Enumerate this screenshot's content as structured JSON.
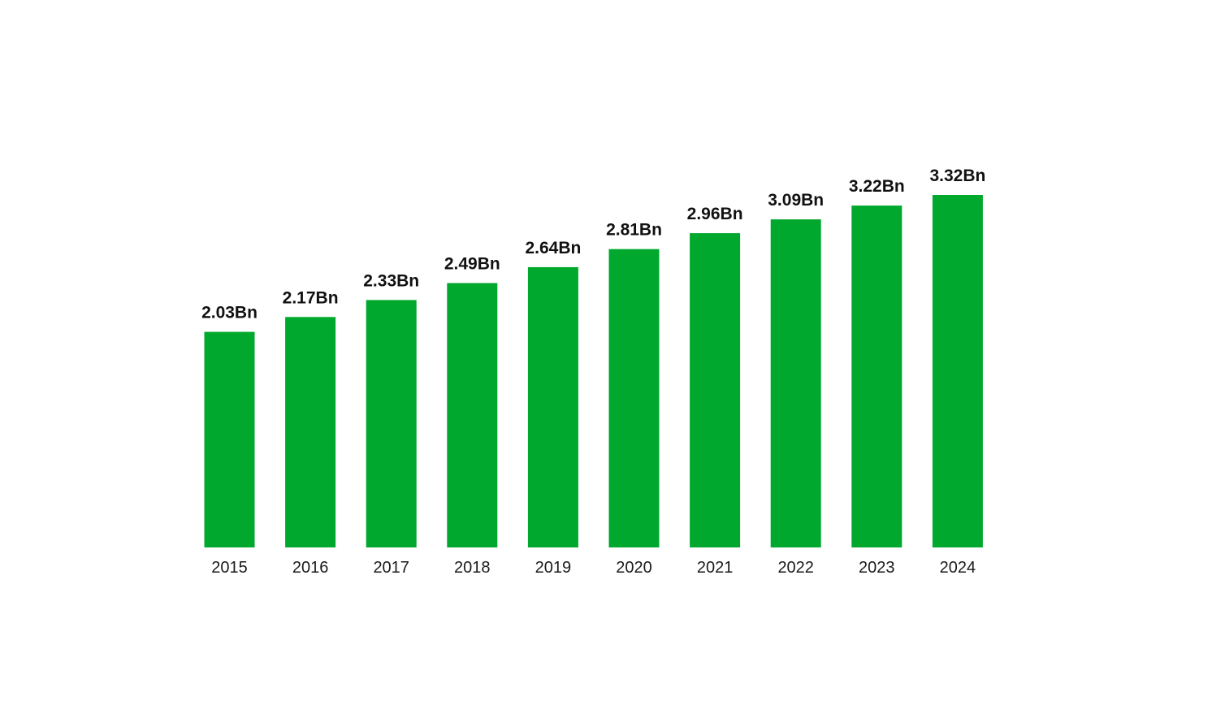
{
  "chart_data": {
    "type": "bar",
    "categories": [
      "2015",
      "2016",
      "2017",
      "2018",
      "2019",
      "2020",
      "2021",
      "2022",
      "2023",
      "2024"
    ],
    "values": [
      2.03,
      2.17,
      2.33,
      2.49,
      2.64,
      2.81,
      2.96,
      3.09,
      3.22,
      3.32
    ],
    "data_labels": [
      "2.03Bn",
      "2.17Bn",
      "2.33Bn",
      "2.49Bn",
      "2.64Bn",
      "2.81Bn",
      "2.96Bn",
      "3.09Bn",
      "3.22Bn",
      "3.32Bn"
    ],
    "title": "",
    "xlabel": "",
    "ylabel": "",
    "ylim": [
      0,
      3.32
    ],
    "grid": false,
    "legend": "none",
    "colors": {
      "bar": "#00a82d",
      "label": "#111111",
      "background": "#ffffff"
    }
  }
}
